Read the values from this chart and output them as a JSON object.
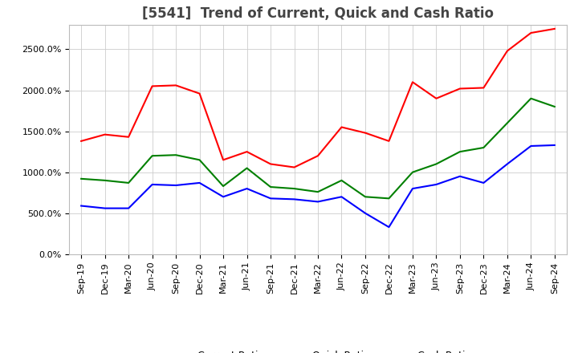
{
  "title": "[5541]  Trend of Current, Quick and Cash Ratio",
  "x_labels": [
    "Sep-19",
    "Dec-19",
    "Mar-20",
    "Jun-20",
    "Sep-20",
    "Dec-20",
    "Mar-21",
    "Jun-21",
    "Sep-21",
    "Dec-21",
    "Mar-22",
    "Jun-22",
    "Sep-22",
    "Dec-22",
    "Mar-23",
    "Jun-23",
    "Sep-23",
    "Dec-23",
    "Mar-24",
    "Jun-24",
    "Sep-24"
  ],
  "current_ratio": [
    1380,
    1460,
    1430,
    2050,
    2060,
    1960,
    1150,
    1250,
    1100,
    1060,
    1200,
    1550,
    1480,
    1380,
    2100,
    1900,
    2020,
    2030,
    2480,
    2700,
    2750
  ],
  "quick_ratio": [
    920,
    900,
    870,
    1200,
    1210,
    1150,
    830,
    1050,
    820,
    800,
    760,
    900,
    700,
    680,
    1000,
    1100,
    1250,
    1300,
    1600,
    1900,
    1800
  ],
  "cash_ratio": [
    590,
    560,
    560,
    850,
    840,
    870,
    700,
    800,
    680,
    670,
    640,
    700,
    500,
    330,
    800,
    850,
    950,
    870,
    1100,
    1320,
    1330
  ],
  "current_color": "#FF0000",
  "quick_color": "#008000",
  "cash_color": "#0000FF",
  "ylim": [
    0,
    2800
  ],
  "yticks": [
    0,
    500,
    1000,
    1500,
    2000,
    2500
  ],
  "background_color": "#FFFFFF",
  "grid_color": "#CCCCCC",
  "title_fontsize": 12,
  "tick_fontsize": 8,
  "legend_fontsize": 9,
  "line_width": 1.5
}
